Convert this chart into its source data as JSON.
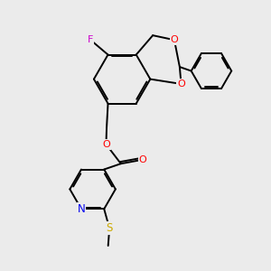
{
  "bg_color": "#EBEBEB",
  "bond_color": "#000000",
  "atom_colors": {
    "F": "#CC00CC",
    "O": "#FF0000",
    "N": "#0000EE",
    "S": "#CCAA00",
    "C": "#000000"
  },
  "lw": 1.4,
  "figsize": [
    3.0,
    3.0
  ],
  "dpi": 100
}
